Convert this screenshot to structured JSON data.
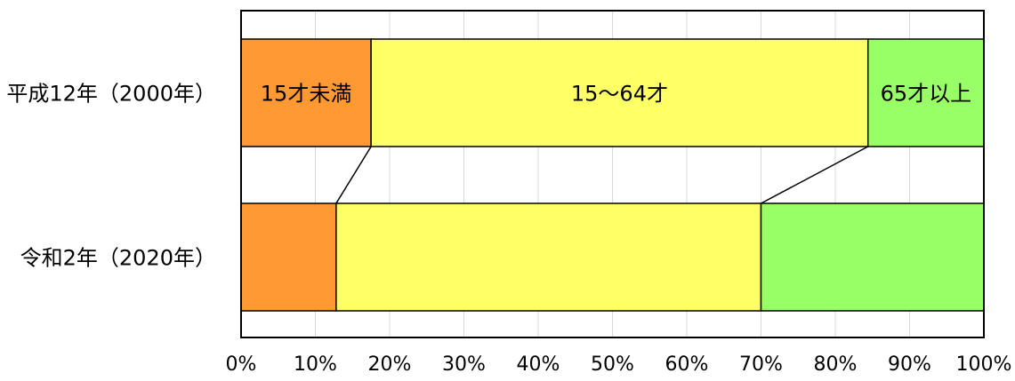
{
  "chart_data": {
    "type": "bar",
    "orientation": "horizontal",
    "stacked": "percent",
    "categories": [
      "平成12年（2000年）",
      "令和2年（2020年）"
    ],
    "series": [
      {
        "name": "15才未満",
        "values": [
          17.5,
          12.8
        ],
        "color": "#FF9933"
      },
      {
        "name": "15～64才",
        "values": [
          66.9,
          57.2
        ],
        "color": "#FFFF66"
      },
      {
        "name": "65才以上",
        "values": [
          15.6,
          30.0
        ],
        "color": "#99FF66"
      }
    ],
    "segment_labels_shown_for_category": 0,
    "series_lines": true,
    "xlim": [
      0,
      100
    ],
    "xticks": [
      "0%",
      "10%",
      "20%",
      "30%",
      "40%",
      "50%",
      "60%",
      "70%",
      "80%",
      "90%",
      "100%"
    ],
    "grid": {
      "vertical": true,
      "color": "#d9d9d9"
    },
    "legend": "none",
    "title": "",
    "xlabel": "",
    "ylabel": ""
  }
}
